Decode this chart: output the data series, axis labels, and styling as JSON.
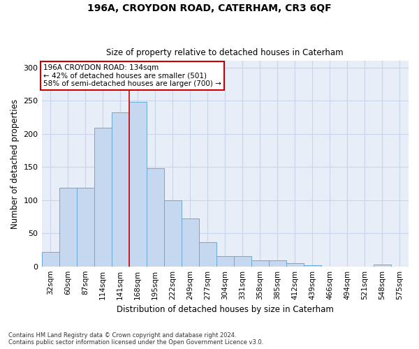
{
  "title1": "196A, CROYDON ROAD, CATERHAM, CR3 6QF",
  "title2": "Size of property relative to detached houses in Caterham",
  "xlabel": "Distribution of detached houses by size in Caterham",
  "ylabel": "Number of detached properties",
  "categories": [
    "32sqm",
    "60sqm",
    "87sqm",
    "114sqm",
    "141sqm",
    "168sqm",
    "195sqm",
    "222sqm",
    "249sqm",
    "277sqm",
    "304sqm",
    "331sqm",
    "358sqm",
    "385sqm",
    "412sqm",
    "439sqm",
    "466sqm",
    "494sqm",
    "521sqm",
    "548sqm",
    "575sqm"
  ],
  "bar_values": [
    22,
    119,
    119,
    209,
    232,
    248,
    148,
    100,
    72,
    36,
    15,
    15,
    9,
    9,
    5,
    2,
    0,
    0,
    0,
    3,
    0
  ],
  "bar_color": "#c5d8f0",
  "bar_edge_color": "#6aaad4",
  "grid_color": "#c8d4e8",
  "background_color": "#e8eef8",
  "vline_x": 4.5,
  "vline_color": "#cc0000",
  "annotation_line1": "196A CROYDON ROAD: 134sqm",
  "annotation_line2": "← 42% of detached houses are smaller (501)",
  "annotation_line3": "58% of semi-detached houses are larger (700) →",
  "annotation_box_facecolor": "#ffffff",
  "annotation_box_edgecolor": "#cc0000",
  "ylim": [
    0,
    310
  ],
  "yticks": [
    0,
    50,
    100,
    150,
    200,
    250,
    300
  ],
  "footnote1": "Contains HM Land Registry data © Crown copyright and database right 2024.",
  "footnote2": "Contains public sector information licensed under the Open Government Licence v3.0."
}
